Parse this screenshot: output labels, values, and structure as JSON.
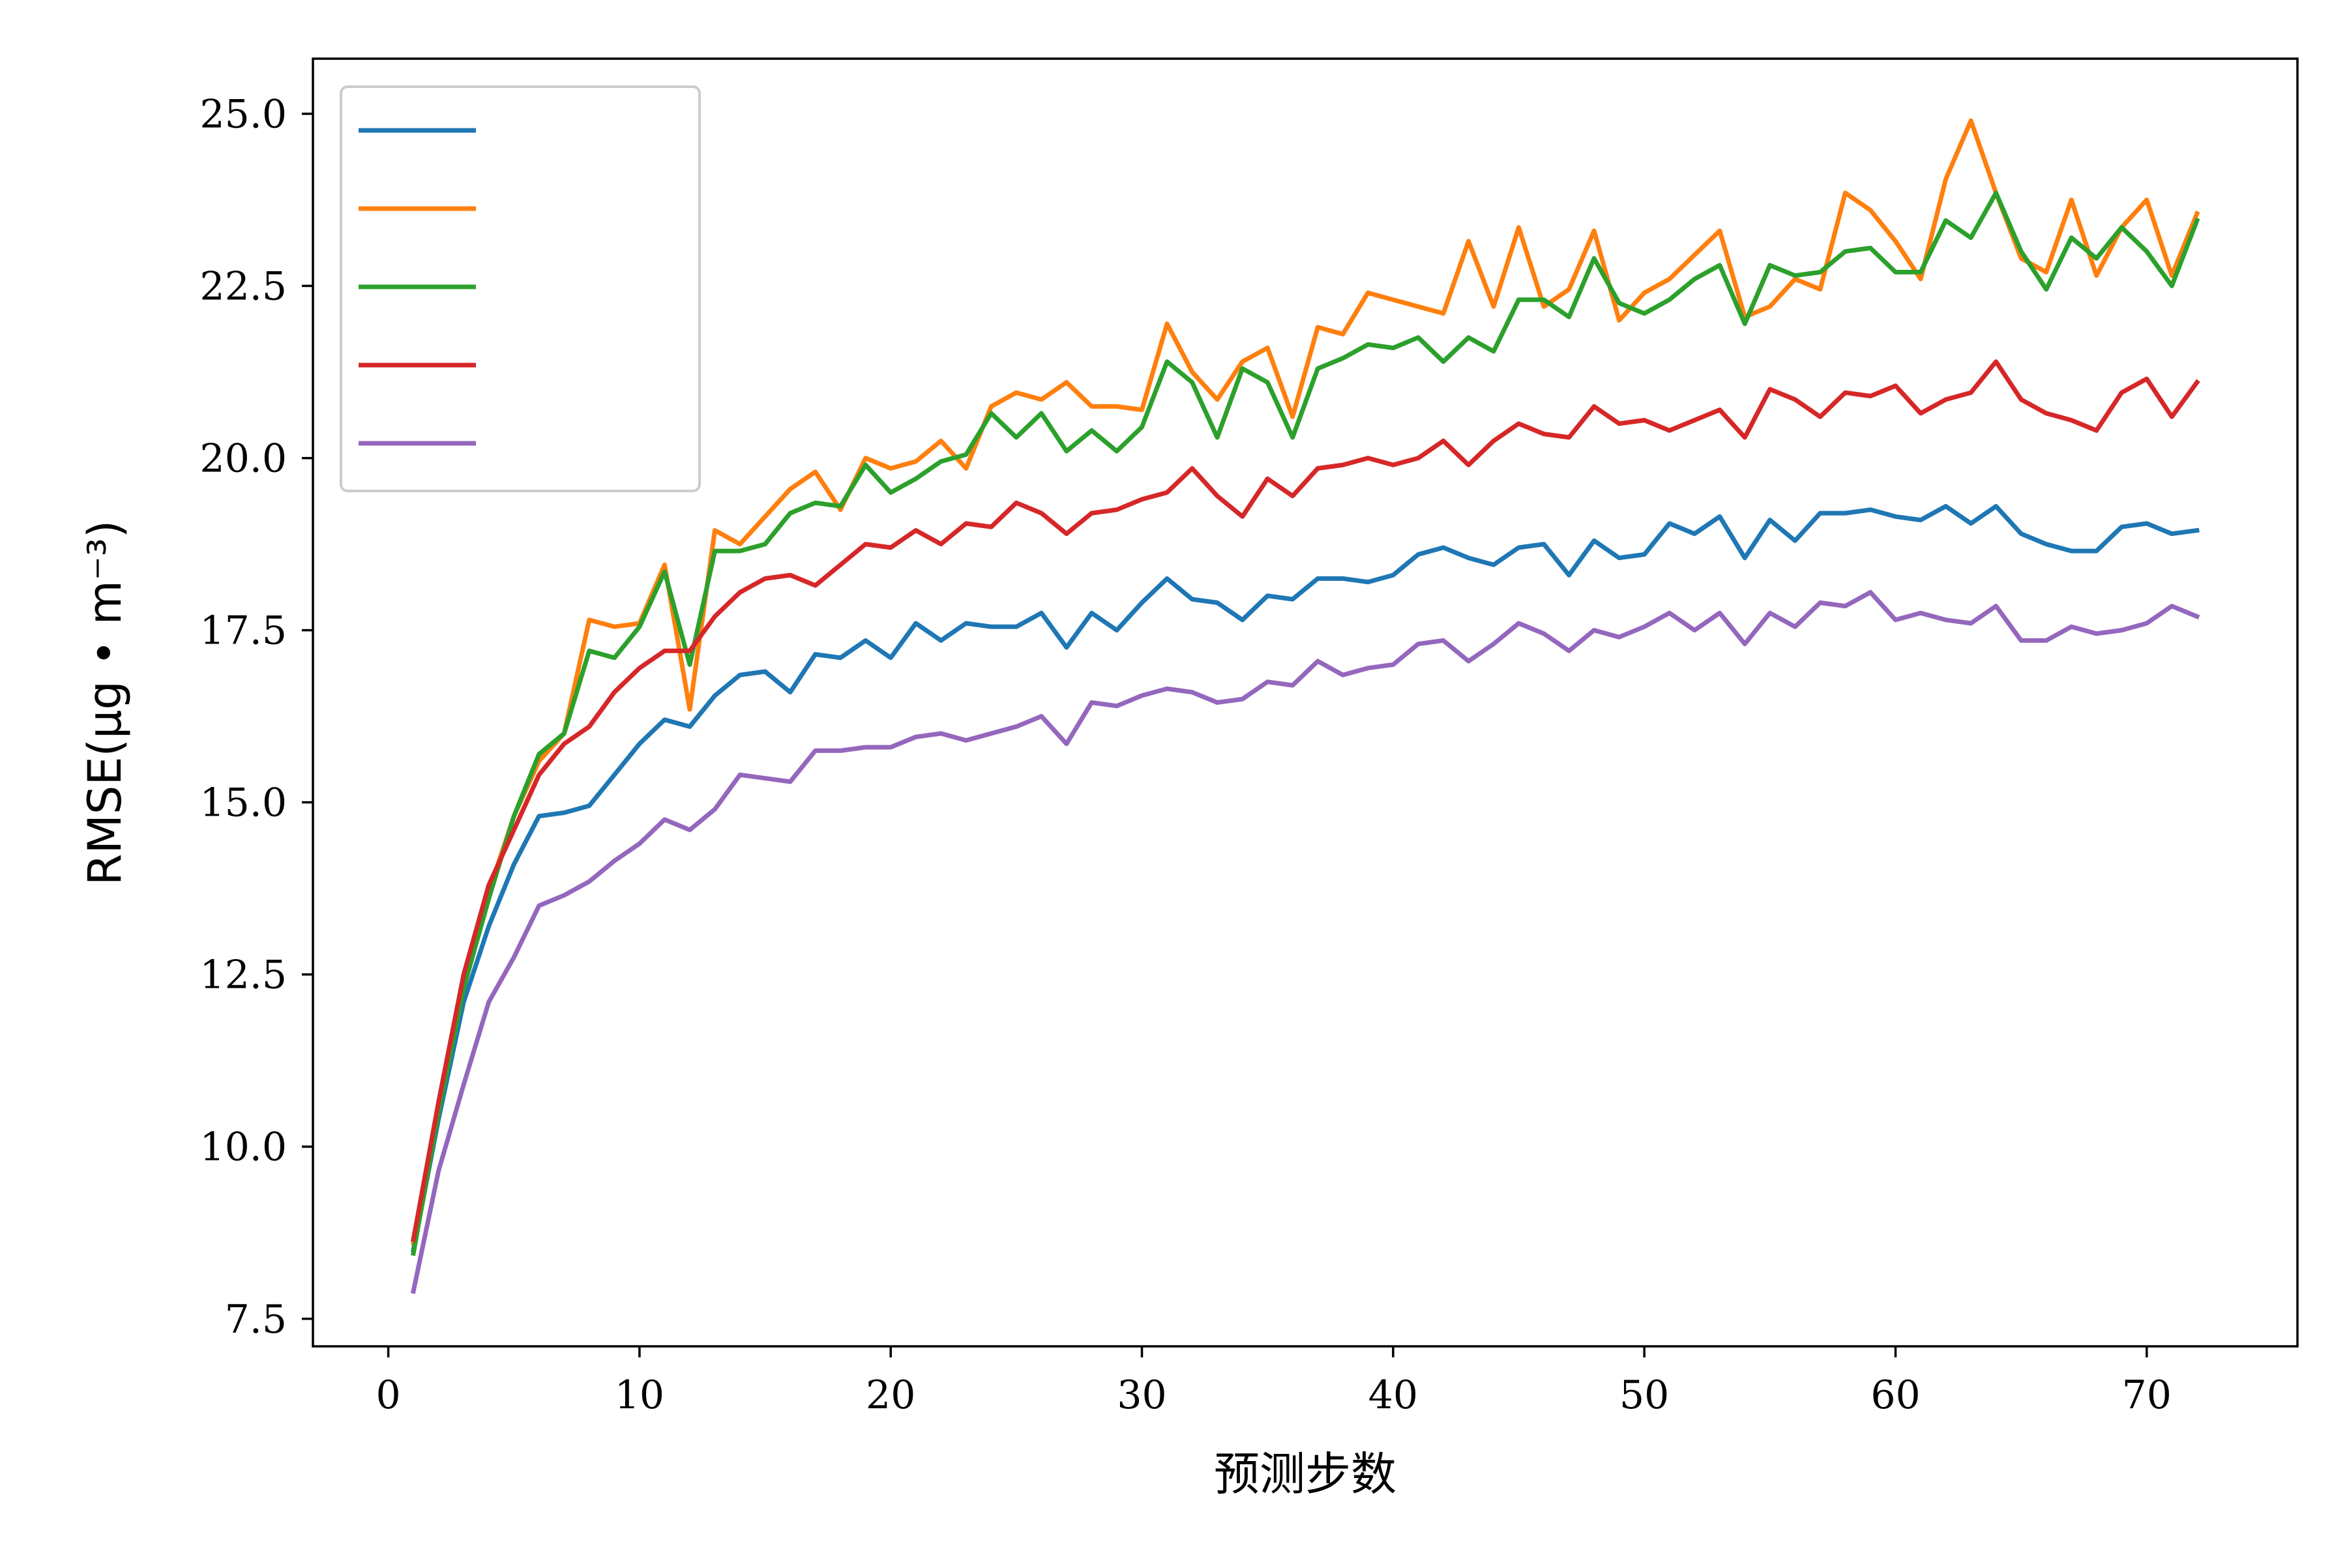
{
  "chart_data": {
    "type": "line",
    "title": "",
    "xlabel": "预测步数",
    "ylabel": "RMSE(μg • m⁻³)",
    "xlim": [
      -3,
      76
    ],
    "ylim": [
      7.1,
      25.8
    ],
    "xticks": [
      0,
      10,
      20,
      30,
      40,
      50,
      60,
      70
    ],
    "yticks": [
      7.5,
      10.0,
      12.5,
      15.0,
      17.5,
      20.0,
      22.5,
      25.0
    ],
    "ytick_labels": [
      "7.5",
      "10.0",
      "12.5",
      "15.0",
      "17.5",
      "20.0",
      "22.5",
      "25.0"
    ],
    "grid": false,
    "legend_position": "upper-left",
    "x": [
      1,
      2,
      3,
      4,
      5,
      6,
      7,
      8,
      9,
      10,
      11,
      12,
      13,
      14,
      15,
      16,
      17,
      18,
      19,
      20,
      21,
      22,
      23,
      24,
      25,
      26,
      27,
      28,
      29,
      30,
      31,
      32,
      33,
      34,
      35,
      36,
      37,
      38,
      39,
      40,
      41,
      42,
      43,
      44,
      45,
      46,
      47,
      48,
      49,
      50,
      51,
      52,
      53,
      54,
      55,
      56,
      57,
      58,
      59,
      60,
      61,
      62,
      63,
      64,
      65,
      66,
      67,
      68,
      69,
      70,
      71,
      72
    ],
    "series": [
      {
        "name": "",
        "color": "#1f77b4",
        "values": [
          8.5,
          10.4,
          12.1,
          13.2,
          14.1,
          14.8,
          14.85,
          14.95,
          15.4,
          15.85,
          16.2,
          16.1,
          16.55,
          16.85,
          16.9,
          16.6,
          17.15,
          17.1,
          17.35,
          17.1,
          17.6,
          17.35,
          17.6,
          17.55,
          17.55,
          17.75,
          17.25,
          17.75,
          17.5,
          17.9,
          18.25,
          17.95,
          17.9,
          17.65,
          18.0,
          17.95,
          18.25,
          18.25,
          18.2,
          18.3,
          18.6,
          18.7,
          18.55,
          18.45,
          18.7,
          18.75,
          18.3,
          18.8,
          18.55,
          18.6,
          19.05,
          18.9,
          19.15,
          18.55,
          19.1,
          18.8,
          19.2,
          19.2,
          19.25,
          19.15,
          19.1,
          19.3,
          19.05,
          19.3,
          18.9,
          18.75,
          18.65,
          18.65,
          19.0,
          19.05,
          18.9,
          18.95
        ]
      },
      {
        "name": "",
        "color": "#ff7f0e",
        "values": [
          8.6,
          10.6,
          12.4,
          13.7,
          14.8,
          15.6,
          16.0,
          17.65,
          17.55,
          17.6,
          18.45,
          16.35,
          18.95,
          18.75,
          19.15,
          19.55,
          19.8,
          19.25,
          20.0,
          19.85,
          19.95,
          20.25,
          19.85,
          20.75,
          20.95,
          20.85,
          21.1,
          20.75,
          20.75,
          20.7,
          21.95,
          21.25,
          20.85,
          21.4,
          21.6,
          20.6,
          21.9,
          21.8,
          22.4,
          22.3,
          22.2,
          22.1,
          23.15,
          22.2,
          23.35,
          22.2,
          22.45,
          23.3,
          22.0,
          22.4,
          22.6,
          22.95,
          23.3,
          22.05,
          22.2,
          22.6,
          22.45,
          23.85,
          23.6,
          23.15,
          22.6,
          24.05,
          24.9,
          23.85,
          22.9,
          22.7,
          23.75,
          22.65,
          23.35,
          23.75,
          22.65,
          23.55
        ]
      },
      {
        "name": "",
        "color": "#2ca02c",
        "values": [
          8.45,
          10.5,
          12.3,
          13.6,
          14.8,
          15.7,
          16.0,
          17.2,
          17.1,
          17.55,
          18.35,
          17.0,
          18.65,
          18.65,
          18.75,
          19.2,
          19.35,
          19.3,
          19.9,
          19.5,
          19.7,
          19.95,
          20.05,
          20.65,
          20.3,
          20.65,
          20.1,
          20.4,
          20.1,
          20.45,
          21.4,
          21.1,
          20.3,
          21.3,
          21.1,
          20.3,
          21.3,
          21.45,
          21.65,
          21.6,
          21.75,
          21.4,
          21.75,
          21.55,
          22.3,
          22.3,
          22.05,
          22.9,
          22.25,
          22.1,
          22.3,
          22.6,
          22.8,
          21.95,
          22.8,
          22.65,
          22.7,
          23.0,
          23.05,
          22.7,
          22.7,
          23.45,
          23.2,
          23.85,
          23.0,
          22.45,
          23.2,
          22.9,
          23.35,
          23.0,
          22.5,
          23.45
        ]
      },
      {
        "name": "",
        "color": "#d62728",
        "values": [
          8.65,
          10.65,
          12.5,
          13.8,
          14.6,
          15.4,
          15.85,
          16.1,
          16.6,
          16.95,
          17.2,
          17.2,
          17.7,
          18.05,
          18.25,
          18.3,
          18.15,
          18.45,
          18.75,
          18.7,
          18.95,
          18.75,
          19.05,
          19.0,
          19.35,
          19.2,
          18.9,
          19.2,
          19.25,
          19.4,
          19.5,
          19.85,
          19.45,
          19.15,
          19.7,
          19.45,
          19.85,
          19.9,
          20.0,
          19.9,
          20.0,
          20.25,
          19.9,
          20.25,
          20.5,
          20.35,
          20.3,
          20.75,
          20.5,
          20.55,
          20.4,
          20.55,
          20.7,
          20.3,
          21.0,
          20.85,
          20.6,
          20.95,
          20.9,
          21.05,
          20.65,
          20.85,
          20.95,
          21.4,
          20.85,
          20.65,
          20.55,
          20.4,
          20.95,
          21.15,
          20.6,
          21.1
        ]
      },
      {
        "name": "",
        "color": "#9467bd",
        "values": [
          7.9,
          9.65,
          10.9,
          12.1,
          12.75,
          13.5,
          13.65,
          13.85,
          14.15,
          14.4,
          14.75,
          14.6,
          14.9,
          15.4,
          15.35,
          15.3,
          15.75,
          15.75,
          15.8,
          15.8,
          15.95,
          16.0,
          15.9,
          16.0,
          16.1,
          16.25,
          15.85,
          16.45,
          16.4,
          16.55,
          16.65,
          16.6,
          16.45,
          16.5,
          16.75,
          16.7,
          17.05,
          16.85,
          16.95,
          17.0,
          17.3,
          17.35,
          17.05,
          17.3,
          17.6,
          17.45,
          17.2,
          17.5,
          17.4,
          17.55,
          17.75,
          17.5,
          17.75,
          17.3,
          17.75,
          17.55,
          17.9,
          17.85,
          18.05,
          17.65,
          17.75,
          17.65,
          17.6,
          17.85,
          17.35,
          17.35,
          17.55,
          17.45,
          17.5,
          17.6,
          17.85,
          17.7
        ]
      }
    ]
  }
}
